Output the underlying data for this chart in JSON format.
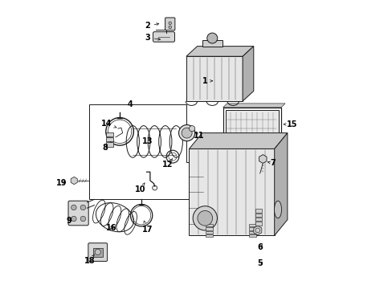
{
  "bg_color": "#ffffff",
  "line_color": "#1a1a1a",
  "label_color": "#000000",
  "fig_w": 4.89,
  "fig_h": 3.6,
  "dpi": 100,
  "label_positions": {
    "1": {
      "text": [
        0.53,
        0.72
      ],
      "arrow": [
        0.565,
        0.72
      ]
    },
    "2": {
      "text": [
        0.33,
        0.91
      ],
      "arrow": [
        0.38,
        0.92
      ]
    },
    "3": {
      "text": [
        0.33,
        0.87
      ],
      "arrow": [
        0.385,
        0.862
      ]
    },
    "4": {
      "text": [
        0.27,
        0.64
      ],
      "arrow": null
    },
    "5": {
      "text": [
        0.72,
        0.088
      ],
      "arrow": [
        0.735,
        0.1
      ]
    },
    "6": {
      "text": [
        0.72,
        0.145
      ],
      "arrow": [
        0.735,
        0.158
      ]
    },
    "7": {
      "text": [
        0.765,
        0.435
      ],
      "arrow": [
        0.745,
        0.44
      ]
    },
    "8": {
      "text": [
        0.185,
        0.49
      ],
      "arrow": [
        0.2,
        0.5
      ]
    },
    "9": {
      "text": [
        0.058,
        0.235
      ],
      "arrow": [
        0.075,
        0.252
      ]
    },
    "10": {
      "text": [
        0.305,
        0.345
      ],
      "arrow": [
        0.322,
        0.368
      ]
    },
    "11": {
      "text": [
        0.51,
        0.53
      ],
      "arrow": [
        0.49,
        0.548
      ]
    },
    "12": {
      "text": [
        0.4,
        0.43
      ],
      "arrow": [
        0.418,
        0.452
      ]
    },
    "13": {
      "text": [
        0.33,
        0.51
      ],
      "arrow": [
        0.35,
        0.528
      ]
    },
    "14": {
      "text": [
        0.19,
        0.572
      ],
      "arrow": [
        0.225,
        0.558
      ]
    },
    "15": {
      "text": [
        0.83,
        0.57
      ],
      "arrow": [
        0.8,
        0.57
      ]
    },
    "16": {
      "text": [
        0.205,
        0.21
      ],
      "arrow": [
        0.215,
        0.23
      ]
    },
    "17": {
      "text": [
        0.33,
        0.205
      ],
      "arrow": [
        0.318,
        0.238
      ]
    },
    "18": {
      "text": [
        0.13,
        0.098
      ],
      "arrow": [
        0.148,
        0.12
      ]
    },
    "19": {
      "text": [
        0.035,
        0.368
      ],
      "arrow": [
        0.058,
        0.372
      ]
    }
  }
}
